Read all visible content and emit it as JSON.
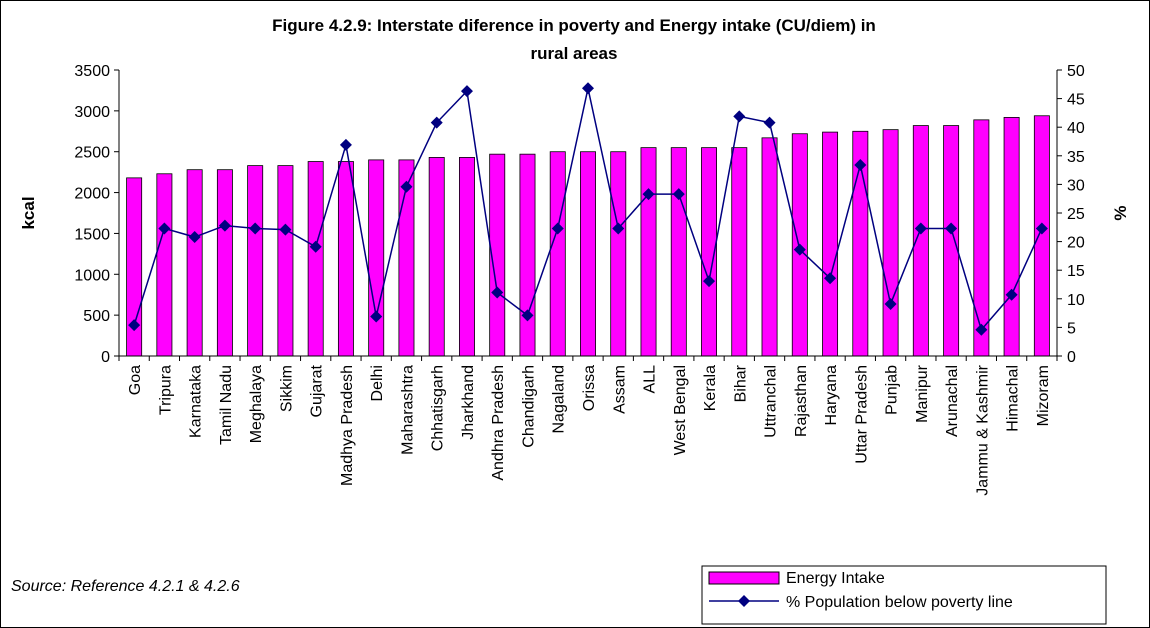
{
  "chart_data": {
    "type": "bar",
    "title_lines": [
      "Figure 4.2.9: Interstate diference in  poverty and  Energy intake (CU/diem) in",
      "rural areas"
    ],
    "ylabel": "kcal",
    "y2label": "%",
    "ylim": [
      0,
      3500
    ],
    "y2lim": [
      0,
      50
    ],
    "yticks": [
      "0",
      "500",
      "1000",
      "1500",
      "2000",
      "2500",
      "3000",
      "3500"
    ],
    "y2ticks": [
      "0",
      "5",
      "10",
      "15",
      "20",
      "25",
      "30",
      "35",
      "40",
      "45",
      "50"
    ],
    "categories": [
      "Goa",
      "Tripura",
      "Karnataka",
      "Tamil Nadu",
      "Meghalaya",
      "Sikkim",
      "Gujarat",
      "Madhya Pradesh",
      "Delhi",
      "Maharashtra",
      "Chhatisgarh",
      "Jharkhand",
      "Andhra Pradesh",
      "Chandigarh",
      "Nagaland",
      "Orissa",
      "Assam",
      "ALL",
      "West Bengal",
      "Kerala",
      "Bihar",
      "Uttranchal",
      "Rajasthan",
      "Haryana",
      "Uttar Pradesh",
      "Punjab",
      "Manipur",
      "Arunachal",
      "Jammu & Kashmir",
      "Himachal",
      "Mizoram"
    ],
    "series": [
      {
        "name": "Energy Intake",
        "kind": "bar",
        "axis": "left",
        "color": "#FF00FF",
        "values": [
          2180,
          2230,
          2280,
          2280,
          2330,
          2330,
          2380,
          2380,
          2400,
          2400,
          2430,
          2430,
          2470,
          2470,
          2500,
          2500,
          2500,
          2550,
          2550,
          2550,
          2550,
          2670,
          2720,
          2740,
          2750,
          2770,
          2820,
          2820,
          2890,
          2920,
          2940
        ]
      },
      {
        "name": "% Population below poverty line",
        "kind": "line",
        "axis": "right",
        "color": "#000080",
        "values": [
          5.4,
          22.3,
          20.8,
          22.8,
          22.3,
          22.1,
          19.1,
          36.9,
          6.9,
          29.6,
          40.8,
          46.3,
          11.1,
          7.1,
          22.3,
          46.8,
          22.3,
          28.3,
          28.3,
          13.1,
          41.9,
          40.8,
          18.6,
          13.6,
          33.4,
          9.1,
          22.3,
          22.3,
          4.6,
          10.7,
          22.3
        ]
      }
    ],
    "legend_position": "bottom-right",
    "grid": false
  },
  "source_note": "Source:  Reference 4.2.1 & 4.2.6"
}
